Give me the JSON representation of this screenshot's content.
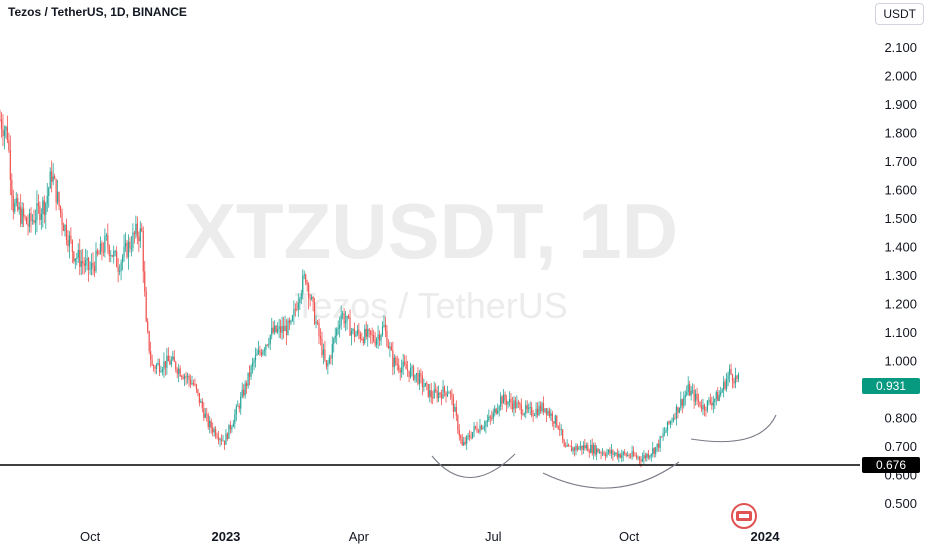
{
  "header": {
    "title": "Tezos / TetherUS, 1D, BINANCE",
    "unit": "USDT"
  },
  "watermark": {
    "symbol": "XTZUSDT, 1D",
    "name": "Tezos / TetherUS"
  },
  "colors": {
    "up": "#26a69a",
    "down": "#ef5350",
    "price_badge": "#089981",
    "support_line": "#000000",
    "curve": "#787b86"
  },
  "chart_data": {
    "type": "candlestick",
    "title": "Tezos / TetherUS, 1D, BINANCE",
    "ylabel": "USDT",
    "ylim": [
      0.45,
      2.15
    ],
    "y_ticks": [
      "2.100",
      "2.000",
      "1.900",
      "1.800",
      "1.700",
      "1.600",
      "1.500",
      "1.400",
      "1.300",
      "1.200",
      "1.100",
      "1.000",
      "0.900",
      "0.800",
      "0.700",
      "0.600",
      "0.500"
    ],
    "x_ticks": [
      "Oct",
      "2023",
      "Apr",
      "Jul",
      "Oct",
      "2024"
    ],
    "price_path": [
      [
        "2022-08-01",
        1.85
      ],
      [
        "2022-08-06",
        1.8
      ],
      [
        "2022-08-10",
        1.55
      ],
      [
        "2022-08-20",
        1.48
      ],
      [
        "2022-09-01",
        1.56
      ],
      [
        "2022-09-05",
        1.66
      ],
      [
        "2022-09-12",
        1.5
      ],
      [
        "2022-09-20",
        1.38
      ],
      [
        "2022-10-01",
        1.32
      ],
      [
        "2022-10-12",
        1.42
      ],
      [
        "2022-10-20",
        1.34
      ],
      [
        "2022-11-01",
        1.45
      ],
      [
        "2022-11-05",
        1.45
      ],
      [
        "2022-11-08",
        1.12
      ],
      [
        "2022-11-12",
        0.98
      ],
      [
        "2022-11-25",
        1.0
      ],
      [
        "2022-12-10",
        0.92
      ],
      [
        "2022-12-20",
        0.78
      ],
      [
        "2022-12-31",
        0.72
      ],
      [
        "2023-01-10",
        0.85
      ],
      [
        "2023-01-20",
        1.0
      ],
      [
        "2023-02-01",
        1.1
      ],
      [
        "2023-02-14",
        1.12
      ],
      [
        "2023-02-20",
        1.25
      ],
      [
        "2023-02-24",
        1.3
      ],
      [
        "2023-03-01",
        1.18
      ],
      [
        "2023-03-08",
        1.02
      ],
      [
        "2023-03-10",
        0.97
      ],
      [
        "2023-03-20",
        1.17
      ],
      [
        "2023-03-28",
        1.1
      ],
      [
        "2023-04-12",
        1.08
      ],
      [
        "2023-04-18",
        1.12
      ],
      [
        "2023-04-24",
        1.0
      ],
      [
        "2023-05-10",
        0.95
      ],
      [
        "2023-05-20",
        0.88
      ],
      [
        "2023-06-01",
        0.9
      ],
      [
        "2023-06-05",
        0.82
      ],
      [
        "2023-06-10",
        0.7
      ],
      [
        "2023-06-18",
        0.76
      ],
      [
        "2023-06-30",
        0.8
      ],
      [
        "2023-07-06",
        0.87
      ],
      [
        "2023-07-15",
        0.85
      ],
      [
        "2023-07-25",
        0.82
      ],
      [
        "2023-08-05",
        0.84
      ],
      [
        "2023-08-15",
        0.77
      ],
      [
        "2023-08-18",
        0.69
      ],
      [
        "2023-09-01",
        0.7
      ],
      [
        "2023-09-15",
        0.68
      ],
      [
        "2023-10-01",
        0.67
      ],
      [
        "2023-10-10",
        0.66
      ],
      [
        "2023-10-20",
        0.7
      ],
      [
        "2023-11-01",
        0.82
      ],
      [
        "2023-11-10",
        0.9
      ],
      [
        "2023-11-20",
        0.84
      ],
      [
        "2023-12-01",
        0.88
      ],
      [
        "2023-12-08",
        0.96
      ],
      [
        "2023-12-14",
        0.931
      ]
    ],
    "last_price": "0.931",
    "support_level": "0.676",
    "notes": "daily candles; drawn annotations: horizontal support line at 0.676 and three hand-drawn arcs"
  }
}
